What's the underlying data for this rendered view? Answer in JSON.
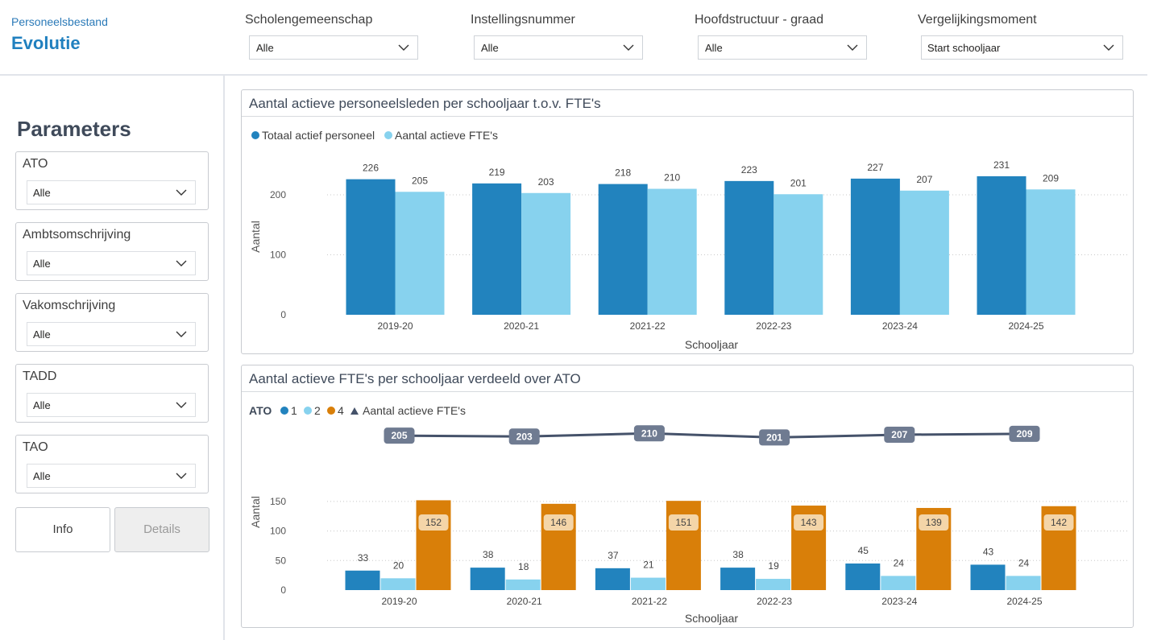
{
  "header": {
    "breadcrumb": "Personeelsbestand",
    "title": "Evolutie",
    "filters": [
      {
        "label": "Scholengemeenschap",
        "value": "Alle"
      },
      {
        "label": "Instellingsnummer",
        "value": "Alle"
      },
      {
        "label": "Hoofdstructuur - graad",
        "value": "Alle"
      },
      {
        "label": "Vergelijkingsmoment",
        "value": "Start schooljaar"
      }
    ]
  },
  "sidebar": {
    "title": "Parameters",
    "params": [
      {
        "label": "ATO",
        "value": "Alle"
      },
      {
        "label": "Ambtsomschrijving",
        "value": "Alle"
      },
      {
        "label": "Vakomschrijving",
        "value": "Alle"
      },
      {
        "label": "TADD",
        "value": "Alle"
      },
      {
        "label": "TAO",
        "value": "Alle"
      }
    ],
    "buttons": {
      "info": "Info",
      "details": "Details"
    }
  },
  "colors": {
    "dark_blue": "#2283be",
    "light_blue": "#87d2ee",
    "orange": "#d97f09",
    "line": "#45526a",
    "accent": "#2080bf"
  },
  "chart_data": [
    {
      "type": "bar",
      "title": "Aantal actieve personeelsleden per schooljaar t.o.v. FTE's",
      "xlabel": "Schooljaar",
      "ylabel": "Aantal",
      "ylim": [
        0,
        240
      ],
      "yticks": [
        0,
        100,
        200
      ],
      "legend_position": "top-left",
      "categories": [
        "2019-20",
        "2020-21",
        "2021-22",
        "2022-23",
        "2023-24",
        "2024-25"
      ],
      "series": [
        {
          "name": "Totaal actief personeel",
          "color": "#2283be",
          "values": [
            226,
            219,
            218,
            223,
            227,
            231
          ]
        },
        {
          "name": "Aantal actieve FTE's",
          "color": "#87d2ee",
          "values": [
            205,
            203,
            210,
            201,
            207,
            209
          ]
        }
      ]
    },
    {
      "type": "bar",
      "title": "Aantal actieve FTE's per schooljaar verdeeld over ATO",
      "xlabel": "Schooljaar",
      "ylabel": "Aantal",
      "ylim": [
        0,
        160
      ],
      "yticks": [
        0,
        50,
        100,
        150
      ],
      "legend_title": "ATO",
      "legend_position": "top-left",
      "categories": [
        "2019-20",
        "2020-21",
        "2021-22",
        "2022-23",
        "2023-24",
        "2024-25"
      ],
      "series": [
        {
          "name": "1",
          "color": "#2283be",
          "values": [
            33,
            38,
            37,
            38,
            45,
            43
          ]
        },
        {
          "name": "2",
          "color": "#87d2ee",
          "values": [
            20,
            18,
            21,
            19,
            24,
            24
          ]
        },
        {
          "name": "4",
          "color": "#d97f09",
          "values": [
            152,
            146,
            151,
            143,
            139,
            142
          ]
        }
      ],
      "line_series": {
        "name": "Aantal actieve FTE's",
        "color": "#45526a",
        "values": [
          205,
          203,
          210,
          201,
          207,
          209
        ]
      }
    }
  ]
}
